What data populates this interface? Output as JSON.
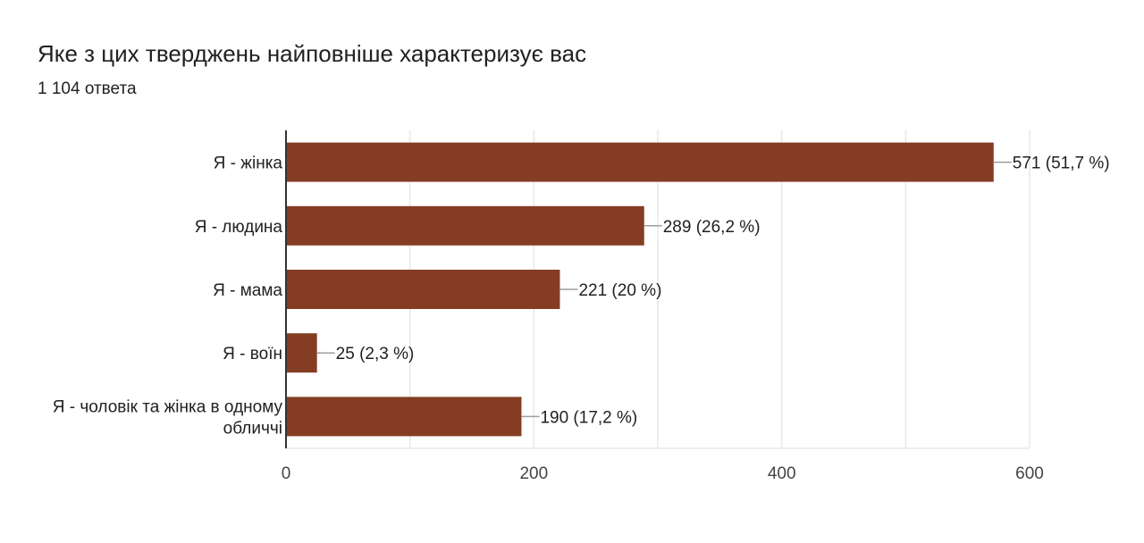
{
  "header": {
    "title": "Яке з цих тверджень найповніше характеризує вас",
    "responses": "1 104 ответа"
  },
  "chart_data": {
    "type": "bar",
    "orientation": "horizontal",
    "title": "Яке з цих тверджень найповніше характеризує вас",
    "categories": [
      "Я - жінка",
      "Я - людина",
      "Я - мама",
      "Я - воїн",
      "Я - чоловік та жінка в одному обличчі"
    ],
    "category_labels": [
      [
        "Я - жінка"
      ],
      [
        "Я - людина"
      ],
      [
        "Я - мама"
      ],
      [
        "Я - воїн"
      ],
      [
        "Я - чоловік та жінка в одному",
        "обличчі"
      ]
    ],
    "values": [
      571,
      289,
      221,
      25,
      190
    ],
    "data_labels": [
      "571 (51,7 %)",
      "289 (26,2 %)",
      "221 (20 %)",
      "25 (2,3 %)",
      "190 (17,2 %)"
    ],
    "xlabel": "",
    "ylabel": "",
    "xlim": [
      0,
      600
    ],
    "xticks": [
      0,
      200,
      400,
      600
    ],
    "xtick_labels": [
      "0",
      "200",
      "400",
      "600"
    ],
    "grid": true,
    "legend": "none",
    "bar_color": "#843d23",
    "grid_color": "#e8e8e8",
    "axis_color": "#333333",
    "leader_color": "#9e9e9e",
    "text_color": "#202124",
    "tick_label_color": "#444444"
  }
}
